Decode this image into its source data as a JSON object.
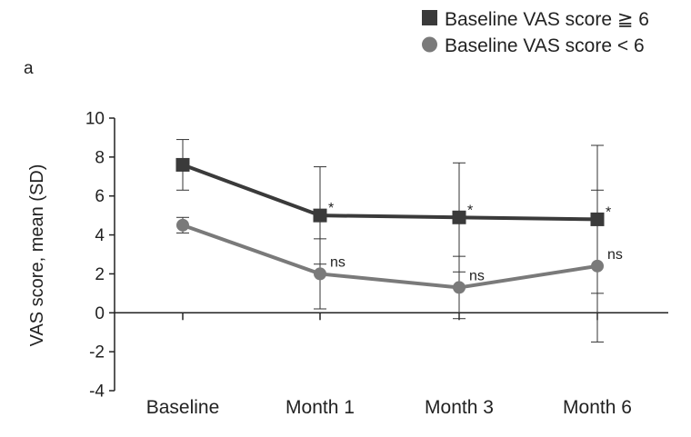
{
  "chart_data": {
    "type": "line",
    "panel_label": "a",
    "ylabel": "VAS score, mean (SD)",
    "ylim": [
      -4,
      10
    ],
    "yticks": [
      "10",
      "8",
      "6",
      "4",
      "2",
      "0",
      "-2",
      "-4"
    ],
    "ytick_values": [
      10,
      8,
      6,
      4,
      2,
      0,
      -2,
      -4
    ],
    "categories": [
      "Baseline",
      "Month 1",
      "Month 3",
      "Month 6"
    ],
    "grid": false,
    "legend_position": "top-right",
    "series": [
      {
        "name": "Baseline VAS score ≧ 6",
        "marker": "square",
        "color": "#3a3a3a",
        "values": [
          7.6,
          5.0,
          4.9,
          4.8
        ],
        "sd": [
          1.3,
          2.5,
          2.8,
          3.8
        ],
        "annotations": [
          "",
          "*",
          "*",
          "*"
        ]
      },
      {
        "name": "Baseline VAS score < 6",
        "marker": "circle",
        "color": "#7a7a7a",
        "values": [
          4.5,
          2.0,
          1.3,
          2.4
        ],
        "sd": [
          0.4,
          1.8,
          1.6,
          3.9
        ],
        "annotations": [
          "",
          "ns",
          "ns",
          "ns"
        ]
      }
    ]
  }
}
